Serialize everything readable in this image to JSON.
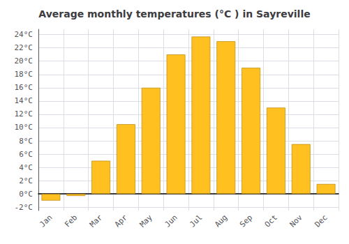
{
  "chart_data": {
    "type": "bar",
    "title": "Average monthly temperatures (°C ) in Sayreville",
    "categories": [
      "Jan",
      "Feb",
      "Mar",
      "Apr",
      "May",
      "Jun",
      "Jul",
      "Aug",
      "Sep",
      "Oct",
      "Nov",
      "Dec"
    ],
    "values": [
      -1.0,
      -0.3,
      5.0,
      10.5,
      16.0,
      21.0,
      23.7,
      23.0,
      19.0,
      13.0,
      7.5,
      1.5
    ],
    "color": "#FFC020",
    "ylim": [
      -2.5,
      24.8
    ],
    "yticks": [
      {
        "value": -2,
        "label": "-2°C"
      },
      {
        "value": 0,
        "label": "0°C"
      },
      {
        "value": 2,
        "label": "2°C"
      },
      {
        "value": 4,
        "label": "4°C"
      },
      {
        "value": 6,
        "label": "6°C"
      },
      {
        "value": 8,
        "label": "8°C"
      },
      {
        "value": 10,
        "label": "10°C"
      },
      {
        "value": 12,
        "label": "12°C"
      },
      {
        "value": 14,
        "label": "14°C"
      },
      {
        "value": 16,
        "label": "16°C"
      },
      {
        "value": 18,
        "label": "18°C"
      },
      {
        "value": 20,
        "label": "20°C"
      },
      {
        "value": 22,
        "label": "22°C"
      },
      {
        "value": 24,
        "label": "24°C"
      }
    ],
    "grid": true
  }
}
